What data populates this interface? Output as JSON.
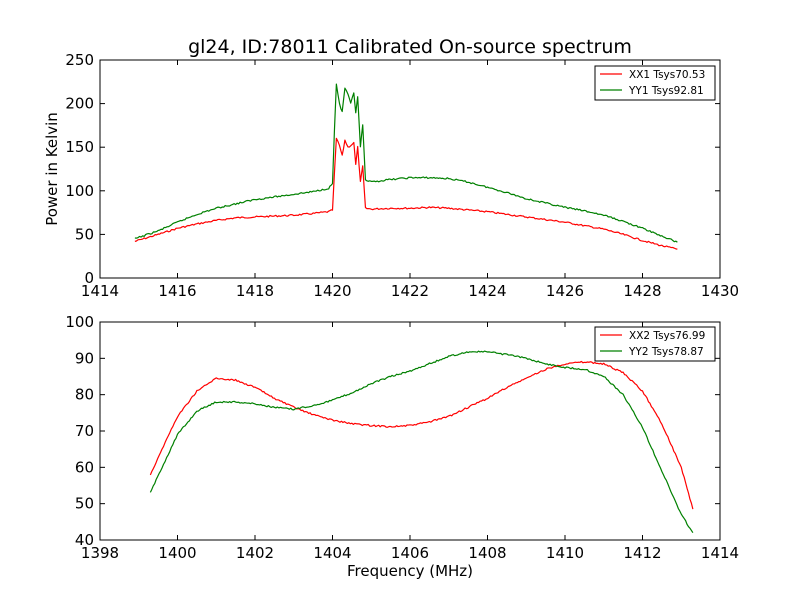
{
  "figure": {
    "title": "gl24, ID:78011 Calibrated On-source spectrum"
  },
  "chart_data": [
    {
      "type": "line",
      "title": "gl24, ID:78011 Calibrated On-source spectrum",
      "xlabel": "",
      "ylabel": "Power in Kelvin",
      "xlim": [
        1414,
        1430
      ],
      "ylim": [
        0,
        250
      ],
      "xticks": [
        1414,
        1416,
        1418,
        1420,
        1422,
        1424,
        1426,
        1428,
        1430
      ],
      "yticks": [
        0,
        50,
        100,
        150,
        200,
        250
      ],
      "grid": false,
      "legend_position": "top-right",
      "series": [
        {
          "name": "XX1 Tsys70.53",
          "color": "#ff0000",
          "points": [
            [
              1414.9,
              42
            ],
            [
              1415.5,
              50
            ],
            [
              1416,
              57
            ],
            [
              1416.5,
              62
            ],
            [
              1417,
              66
            ],
            [
              1417.5,
              69
            ],
            [
              1418,
              70
            ],
            [
              1418.5,
              71
            ],
            [
              1419,
              72
            ],
            [
              1419.5,
              74
            ],
            [
              1419.9,
              76
            ],
            [
              1420.0,
              78
            ],
            [
              1420.05,
              120
            ],
            [
              1420.1,
              160
            ],
            [
              1420.18,
              152
            ],
            [
              1420.25,
              140
            ],
            [
              1420.32,
              158
            ],
            [
              1420.4,
              150
            ],
            [
              1420.47,
              152
            ],
            [
              1420.55,
              155
            ],
            [
              1420.6,
              130
            ],
            [
              1420.65,
              150
            ],
            [
              1420.72,
              110
            ],
            [
              1420.78,
              128
            ],
            [
              1420.85,
              80
            ],
            [
              1421,
              79
            ],
            [
              1421.5,
              80
            ],
            [
              1422,
              80
            ],
            [
              1422.5,
              81
            ],
            [
              1423,
              80
            ],
            [
              1423.5,
              78
            ],
            [
              1424,
              76
            ],
            [
              1424.5,
              73
            ],
            [
              1425,
              70
            ],
            [
              1425.5,
              67
            ],
            [
              1426,
              64
            ],
            [
              1426.5,
              60
            ],
            [
              1427,
              56
            ],
            [
              1427.5,
              50
            ],
            [
              1428,
              43
            ],
            [
              1428.5,
              37
            ],
            [
              1428.9,
              33
            ]
          ]
        },
        {
          "name": "YY1 Tsys92.81",
          "color": "#008000",
          "points": [
            [
              1414.9,
              45
            ],
            [
              1415.5,
              54
            ],
            [
              1416,
              64
            ],
            [
              1416.5,
              73
            ],
            [
              1417,
              80
            ],
            [
              1417.5,
              85
            ],
            [
              1418,
              90
            ],
            [
              1418.5,
              93
            ],
            [
              1419,
              96
            ],
            [
              1419.5,
              99
            ],
            [
              1419.9,
              103
            ],
            [
              1420.0,
              108
            ],
            [
              1420.05,
              170
            ],
            [
              1420.1,
              222
            ],
            [
              1420.18,
              200
            ],
            [
              1420.25,
              190
            ],
            [
              1420.32,
              218
            ],
            [
              1420.4,
              210
            ],
            [
              1420.47,
              200
            ],
            [
              1420.55,
              212
            ],
            [
              1420.6,
              190
            ],
            [
              1420.65,
              208
            ],
            [
              1420.72,
              150
            ],
            [
              1420.78,
              176
            ],
            [
              1420.85,
              112
            ],
            [
              1421,
              110
            ],
            [
              1421.5,
              113
            ],
            [
              1422,
              115
            ],
            [
              1422.5,
              115
            ],
            [
              1423,
              114
            ],
            [
              1423.5,
              110
            ],
            [
              1424,
              104
            ],
            [
              1424.5,
              98
            ],
            [
              1425,
              91
            ],
            [
              1425.5,
              86
            ],
            [
              1426,
              81
            ],
            [
              1426.5,
              77
            ],
            [
              1427,
              72
            ],
            [
              1427.5,
              65
            ],
            [
              1428,
              57
            ],
            [
              1428.5,
              48
            ],
            [
              1428.9,
              41
            ]
          ]
        }
      ]
    },
    {
      "type": "line",
      "title": "",
      "xlabel": "Frequency (MHz)",
      "ylabel": "",
      "xlim": [
        1398,
        1414
      ],
      "ylim": [
        40,
        100
      ],
      "xticks": [
        1398,
        1400,
        1402,
        1404,
        1406,
        1408,
        1410,
        1412,
        1414
      ],
      "yticks": [
        40,
        50,
        60,
        70,
        80,
        90,
        100
      ],
      "grid": false,
      "legend_position": "top-right",
      "series": [
        {
          "name": "XX2 Tsys76.99",
          "color": "#ff0000",
          "points": [
            [
              1399.3,
              58
            ],
            [
              1399.6,
              65
            ],
            [
              1400,
              74
            ],
            [
              1400.5,
              81
            ],
            [
              1401,
              84.5
            ],
            [
              1401.5,
              84
            ],
            [
              1402,
              82
            ],
            [
              1402.5,
              79
            ],
            [
              1403,
              76.5
            ],
            [
              1403.5,
              74.5
            ],
            [
              1404,
              73
            ],
            [
              1404.5,
              72
            ],
            [
              1405,
              71.5
            ],
            [
              1405.5,
              71.2
            ],
            [
              1406,
              71.5
            ],
            [
              1406.5,
              72.5
            ],
            [
              1407,
              74
            ],
            [
              1407.5,
              76.5
            ],
            [
              1408,
              79
            ],
            [
              1408.5,
              82
            ],
            [
              1409,
              84.5
            ],
            [
              1409.5,
              87
            ],
            [
              1410,
              88.5
            ],
            [
              1410.5,
              89
            ],
            [
              1411,
              88.5
            ],
            [
              1411.5,
              86
            ],
            [
              1412,
              81
            ],
            [
              1412.5,
              72
            ],
            [
              1413,
              60
            ],
            [
              1413.3,
              48.5
            ]
          ]
        },
        {
          "name": "YY2 Tsys78.87",
          "color": "#008000",
          "points": [
            [
              1399.3,
              53
            ],
            [
              1399.6,
              60
            ],
            [
              1400,
              69
            ],
            [
              1400.5,
              75.5
            ],
            [
              1401,
              78
            ],
            [
              1401.5,
              78
            ],
            [
              1402,
              77.5
            ],
            [
              1402.5,
              76.5
            ],
            [
              1403,
              76
            ],
            [
              1403.5,
              77
            ],
            [
              1404,
              78.5
            ],
            [
              1404.5,
              80.5
            ],
            [
              1405,
              83
            ],
            [
              1405.5,
              85
            ],
            [
              1406,
              86.5
            ],
            [
              1406.5,
              88.5
            ],
            [
              1407,
              90.5
            ],
            [
              1407.5,
              91.8
            ],
            [
              1408,
              91.8
            ],
            [
              1408.5,
              91
            ],
            [
              1409,
              90
            ],
            [
              1409.5,
              88.5
            ],
            [
              1410,
              87.5
            ],
            [
              1410.5,
              87
            ],
            [
              1411,
              85
            ],
            [
              1411.5,
              80
            ],
            [
              1412,
              71
            ],
            [
              1412.5,
              59
            ],
            [
              1413,
              47
            ],
            [
              1413.3,
              42
            ]
          ]
        }
      ]
    }
  ]
}
